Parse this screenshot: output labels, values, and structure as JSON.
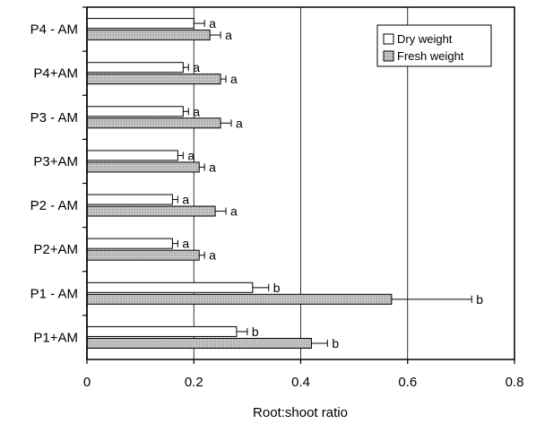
{
  "chart_data": {
    "type": "bar",
    "orientation": "horizontal",
    "categories": [
      "P4 - AM",
      "P4+AM",
      "P3 - AM",
      "P3+AM",
      "P2 - AM",
      "P2+AM",
      "P1 - AM",
      "P1+AM"
    ],
    "series": [
      {
        "name": "Dry weight",
        "values": [
          0.2,
          0.18,
          0.18,
          0.17,
          0.16,
          0.16,
          0.31,
          0.28
        ],
        "errors": [
          0.02,
          0.01,
          0.01,
          0.01,
          0.01,
          0.01,
          0.03,
          0.02
        ],
        "labels": [
          "a",
          "a",
          "a",
          "a",
          "a",
          "a",
          "b",
          "b"
        ],
        "fill": "#ffffff"
      },
      {
        "name": "Fresh weight",
        "values": [
          0.23,
          0.25,
          0.25,
          0.21,
          0.24,
          0.21,
          0.57,
          0.42
        ],
        "errors": [
          0.02,
          0.01,
          0.02,
          0.01,
          0.02,
          0.01,
          0.15,
          0.03
        ],
        "labels": [
          "a",
          "a",
          "a",
          "a",
          "a",
          "a",
          "b",
          "b"
        ],
        "fill": "#c8c8c8"
      }
    ],
    "xlabel": "Root:shoot ratio",
    "ylabel": "",
    "xlim": [
      0,
      0.8
    ],
    "xticks": [
      "0",
      "0.2",
      "0.4",
      "0.6",
      "0.8"
    ],
    "grid": "vertical",
    "legend": "top-right"
  }
}
